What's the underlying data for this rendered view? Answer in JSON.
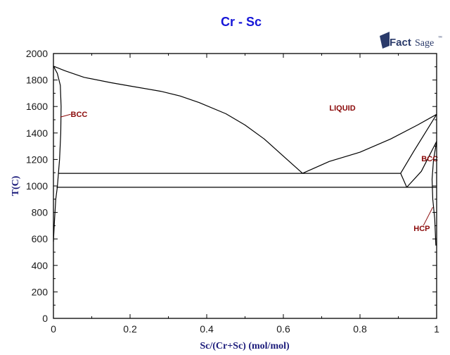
{
  "chart_data": {
    "type": "line",
    "title": "Cr - Sc",
    "xlabel": "Sc/(Cr+Sc) (mol/mol)",
    "ylabel": "T(C)",
    "xlim": [
      0,
      1
    ],
    "ylim": [
      0,
      2000
    ],
    "x_ticks": [
      0,
      0.2,
      0.4,
      0.6,
      0.8,
      1
    ],
    "x_tick_labels": [
      "0",
      "0.2",
      "0.4",
      "0.6",
      "0.8",
      "1"
    ],
    "x_minor_ticks": [
      0.1,
      0.3,
      0.5,
      0.7,
      0.9
    ],
    "y_ticks": [
      0,
      200,
      400,
      600,
      800,
      1000,
      1200,
      1400,
      1600,
      1800,
      2000
    ],
    "y_tick_labels": [
      "0",
      "200",
      "400",
      "600",
      "800",
      "1000",
      "1200",
      "1400",
      "1600",
      "1800",
      "2000"
    ],
    "y_minor_ticks": [
      100,
      300,
      500,
      700,
      900,
      1100,
      1300,
      1500,
      1700,
      1900
    ],
    "grid": false,
    "series": [
      {
        "name": "liquidus-cr-side",
        "points": [
          [
            0,
            1905
          ],
          [
            0.03,
            1870
          ],
          [
            0.08,
            1820
          ],
          [
            0.15,
            1780
          ],
          [
            0.2,
            1755
          ],
          [
            0.28,
            1715
          ],
          [
            0.33,
            1680
          ],
          [
            0.38,
            1630
          ],
          [
            0.45,
            1545
          ],
          [
            0.5,
            1460
          ],
          [
            0.55,
            1355
          ],
          [
            0.6,
            1225
          ],
          [
            0.65,
            1095
          ]
        ]
      },
      {
        "name": "liquidus-sc-side",
        "points": [
          [
            0.65,
            1095
          ],
          [
            0.72,
            1185
          ],
          [
            0.8,
            1255
          ],
          [
            0.88,
            1355
          ],
          [
            0.95,
            1460
          ],
          [
            1.0,
            1541
          ]
        ]
      },
      {
        "name": "bcc-cr-solidus",
        "points": [
          [
            0,
            1905
          ],
          [
            0.01,
            1850
          ],
          [
            0.018,
            1760
          ],
          [
            0.02,
            1600
          ],
          [
            0.019,
            1400
          ],
          [
            0.016,
            1200
          ],
          [
            0.013,
            1095
          ]
        ]
      },
      {
        "name": "bcc-cr-solvus",
        "points": [
          [
            0.013,
            1095
          ],
          [
            0.01,
            990
          ],
          [
            0.006,
            900
          ],
          [
            0.002,
            700
          ],
          [
            0.0,
            580
          ]
        ]
      },
      {
        "name": "eutectic-line",
        "points": [
          [
            0.013,
            1095
          ],
          [
            0.906,
            1095
          ]
        ]
      },
      {
        "name": "eutectoid-line",
        "points": [
          [
            0.008,
            990
          ],
          [
            1.0,
            990
          ]
        ]
      },
      {
        "name": "bcc-sc-liquidus-side",
        "points": [
          [
            0.906,
            1095
          ],
          [
            0.94,
            1260
          ],
          [
            0.97,
            1400
          ],
          [
            1.0,
            1541
          ]
        ]
      },
      {
        "name": "bcc-sc-eutectoid-vee",
        "points": [
          [
            0.906,
            1095
          ],
          [
            0.922,
            990
          ]
        ]
      },
      {
        "name": "bcc-sc-hcp-side",
        "points": [
          [
            0.922,
            990
          ],
          [
            0.96,
            1110
          ],
          [
            1.0,
            1337
          ]
        ]
      },
      {
        "name": "hcp-sc-solvus",
        "points": [
          [
            1.0,
            1337
          ],
          [
            0.992,
            1200
          ],
          [
            0.988,
            1050
          ],
          [
            0.99,
            900
          ],
          [
            0.995,
            750
          ],
          [
            0.998,
            550
          ]
        ]
      }
    ],
    "annotations": [
      {
        "text": "LIQUID",
        "x": 0.72,
        "y": 1570
      },
      {
        "text": "BCC",
        "x": 0.045,
        "y": 1520,
        "leader_to": [
          0.018,
          1520
        ]
      },
      {
        "text": "BCC",
        "x": 0.96,
        "y": 1185
      },
      {
        "text": "HCP",
        "x": 0.94,
        "y": 660,
        "leader_to": [
          0.99,
          840
        ]
      }
    ]
  },
  "logo": {
    "fact": "Fact",
    "sage": "Sage",
    "tm": "™"
  },
  "colors": {
    "title": "#1515d8",
    "phase_label": "#8b0a0a",
    "axis_label": "#1a1a7a",
    "curve": "#000000"
  }
}
